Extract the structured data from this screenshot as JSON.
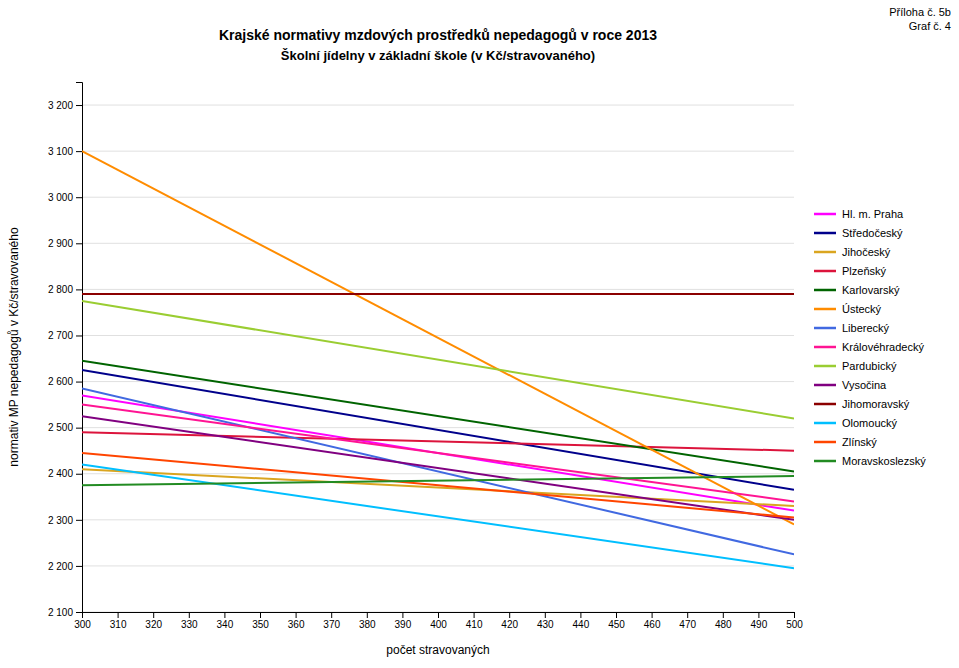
{
  "chart_data": {
    "type": "line",
    "title": "Krajské normativy mzdových prostředků nepedagogů v roce 2013",
    "subtitle": "Školní jídelny v základní škole (v Kč/stravovaného)",
    "x_label": "počet stravovaných",
    "y_label": "normativ MP nepedagogů v Kč/stravovaného",
    "annotation": "Příloha č. 5b\nGraf č. 4",
    "x": [
      300,
      500
    ],
    "xlim": [
      300,
      500
    ],
    "xticks": [
      300,
      310,
      320,
      330,
      340,
      350,
      360,
      370,
      380,
      390,
      400,
      410,
      420,
      430,
      440,
      450,
      460,
      470,
      480,
      490,
      500
    ],
    "ylim": [
      2100,
      3250
    ],
    "yticks": [
      {
        "value": 2100,
        "label": "2 100"
      },
      {
        "value": 2200,
        "label": "2 200"
      },
      {
        "value": 2300,
        "label": "2 300"
      },
      {
        "value": 2400,
        "label": "2 400"
      },
      {
        "value": 2500,
        "label": "2 500"
      },
      {
        "value": 2600,
        "label": "2 600"
      },
      {
        "value": 2700,
        "label": "2 700"
      },
      {
        "value": 2800,
        "label": "2 800"
      },
      {
        "value": 2900,
        "label": "2 900"
      },
      {
        "value": 3000,
        "label": "3 000"
      },
      {
        "value": 3100,
        "label": "3 100"
      },
      {
        "value": 3200,
        "label": "3 200"
      }
    ],
    "grid": "y",
    "legend": "right",
    "series": [
      {
        "name": "Hl. m. Praha",
        "color": "#FF00FF",
        "values": [
          2570,
          2320
        ]
      },
      {
        "name": "Středočeský",
        "color": "#00008B",
        "values": [
          2625,
          2365
        ]
      },
      {
        "name": "Jihočeský",
        "color": "#DAA520",
        "values": [
          2410,
          2330
        ]
      },
      {
        "name": "Plzeňský",
        "color": "#DC143C",
        "values": [
          2490,
          2450
        ]
      },
      {
        "name": "Karlovarský",
        "color": "#006400",
        "values": [
          2645,
          2405
        ]
      },
      {
        "name": "Ústecký",
        "color": "#FF8C00",
        "values": [
          3100,
          2290
        ]
      },
      {
        "name": "Liberecký",
        "color": "#4169E1",
        "values": [
          2585,
          2225
        ]
      },
      {
        "name": "Královéhradecký",
        "color": "#FF1493",
        "values": [
          2550,
          2340
        ]
      },
      {
        "name": "Pardubický",
        "color": "#9ACD32",
        "values": [
          2775,
          2520
        ]
      },
      {
        "name": "Vysočina",
        "color": "#800080",
        "values": [
          2525,
          2300
        ]
      },
      {
        "name": "Jihomoravský",
        "color": "#8B0000",
        "values": [
          2790,
          2790
        ]
      },
      {
        "name": "Olomoucký",
        "color": "#00BFFF",
        "values": [
          2420,
          2195
        ]
      },
      {
        "name": "Zlínský",
        "color": "#FF4500",
        "values": [
          2445,
          2305
        ]
      },
      {
        "name": "Moravskoslezský",
        "color": "#228B22",
        "values": [
          2375,
          2395
        ]
      }
    ]
  }
}
